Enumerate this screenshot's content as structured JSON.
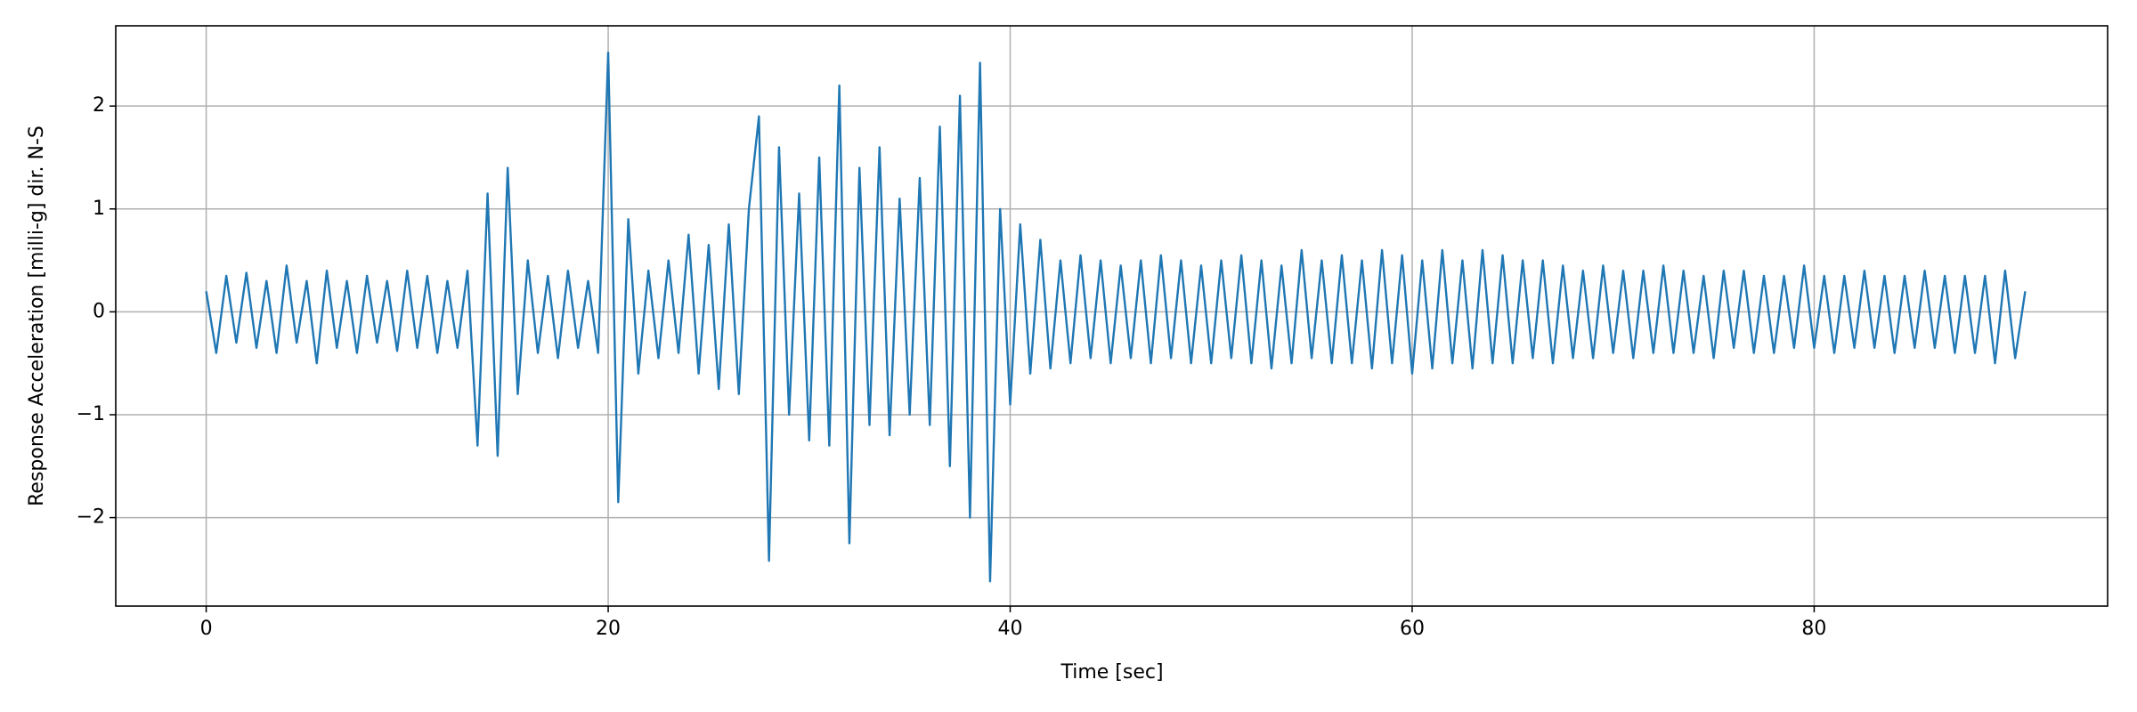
{
  "chart_data": {
    "type": "line",
    "xlabel": "Time [sec]",
    "ylabel": "Response Acceleration [milli-g] dir. N-S",
    "x": [
      0,
      0.5,
      1,
      1.5,
      2,
      2.5,
      3,
      3.5,
      4,
      4.5,
      5,
      5.5,
      6,
      6.5,
      7,
      7.5,
      8,
      8.5,
      9,
      9.5,
      10,
      10.5,
      11,
      11.5,
      12,
      12.5,
      13,
      13.5,
      14,
      14.5,
      15,
      15.5,
      16,
      16.5,
      17,
      17.5,
      18,
      18.5,
      19,
      19.5,
      20,
      20.5,
      21,
      21.5,
      22,
      22.5,
      23,
      23.5,
      24,
      24.5,
      25,
      25.5,
      26,
      26.5,
      27,
      27.5,
      28,
      28.5,
      29,
      29.5,
      30,
      30.5,
      31,
      31.5,
      32,
      32.5,
      33,
      33.5,
      34,
      34.5,
      35,
      35.5,
      36,
      36.5,
      37,
      37.5,
      38,
      38.5,
      39,
      39.5,
      40,
      40.5,
      41,
      41.5,
      42,
      42.5,
      43,
      43.5,
      44,
      44.5,
      45,
      45.5,
      46,
      46.5,
      47,
      47.5,
      48,
      48.5,
      49,
      49.5,
      50,
      50.5,
      51,
      51.5,
      52,
      52.5,
      53,
      53.5,
      54,
      54.5,
      55,
      55.5,
      56,
      56.5,
      57,
      57.5,
      58,
      58.5,
      59,
      59.5,
      60,
      60.5,
      61,
      61.5,
      62,
      62.5,
      63,
      63.5,
      64,
      64.5,
      65,
      65.5,
      66,
      66.5,
      67,
      67.5,
      68,
      68.5,
      69,
      69.5,
      70,
      70.5,
      71,
      71.5,
      72,
      72.5,
      73,
      73.5,
      74,
      74.5,
      75,
      75.5,
      76,
      76.5,
      77,
      77.5,
      78,
      78.5,
      79,
      79.5,
      80,
      80.5,
      81,
      81.5,
      82,
      82.5,
      83,
      83.5,
      84,
      84.5,
      85,
      85.5,
      86,
      86.5,
      87,
      87.5,
      88,
      88.5,
      89,
      89.5,
      90,
      90.5
    ],
    "series": [
      {
        "color": "#1f77b4",
        "values": [
          0.2,
          -0.4,
          0.35,
          -0.3,
          0.38,
          -0.35,
          0.3,
          -0.4,
          0.45,
          -0.3,
          0.3,
          -0.5,
          0.4,
          -0.35,
          0.3,
          -0.4,
          0.35,
          -0.3,
          0.3,
          -0.38,
          0.4,
          -0.35,
          0.35,
          -0.4,
          0.3,
          -0.35,
          0.4,
          -1.3,
          1.15,
          -1.4,
          1.4,
          -0.8,
          0.5,
          -0.4,
          0.35,
          -0.45,
          0.4,
          -0.35,
          0.3,
          -0.4,
          2.52,
          -1.85,
          0.9,
          -0.6,
          0.4,
          -0.45,
          0.5,
          -0.4,
          0.75,
          -0.6,
          0.65,
          -0.75,
          0.85,
          -0.8,
          1.0,
          1.9,
          -2.42,
          1.6,
          -1.0,
          1.15,
          -1.25,
          1.5,
          -1.3,
          2.2,
          -2.25,
          1.4,
          -1.1,
          1.6,
          -1.2,
          1.1,
          -1.0,
          1.3,
          -1.1,
          1.8,
          -1.5,
          2.1,
          -2.0,
          2.42,
          -2.62,
          1.0,
          -0.9,
          0.85,
          -0.6,
          0.7,
          -0.55,
          0.5,
          -0.5,
          0.55,
          -0.45,
          0.5,
          -0.5,
          0.45,
          -0.45,
          0.5,
          -0.5,
          0.55,
          -0.45,
          0.5,
          -0.5,
          0.45,
          -0.5,
          0.5,
          -0.45,
          0.55,
          -0.5,
          0.5,
          -0.55,
          0.45,
          -0.5,
          0.6,
          -0.45,
          0.5,
          -0.5,
          0.55,
          -0.5,
          0.5,
          -0.55,
          0.6,
          -0.5,
          0.55,
          -0.6,
          0.5,
          -0.55,
          0.6,
          -0.5,
          0.5,
          -0.55,
          0.6,
          -0.5,
          0.55,
          -0.5,
          0.5,
          -0.45,
          0.5,
          -0.5,
          0.45,
          -0.45,
          0.4,
          -0.45,
          0.45,
          -0.4,
          0.4,
          -0.45,
          0.4,
          -0.4,
          0.45,
          -0.4,
          0.4,
          -0.4,
          0.35,
          -0.45,
          0.4,
          -0.35,
          0.4,
          -0.4,
          0.35,
          -0.4,
          0.35,
          -0.35,
          0.45,
          -0.35,
          0.35,
          -0.4,
          0.35,
          -0.35,
          0.4,
          -0.35,
          0.35,
          -0.4,
          0.35,
          -0.35,
          0.4,
          -0.35,
          0.35,
          -0.4,
          0.35,
          -0.4,
          0.35,
          -0.5,
          0.4,
          -0.45,
          0.2
        ]
      }
    ],
    "xlim": [
      -4.5,
      94.6
    ],
    "ylim": [
      -2.86,
      2.78
    ],
    "xticks": [
      0,
      20,
      40,
      60,
      80
    ],
    "yticks": [
      {
        "value": -2,
        "label": "−2"
      },
      {
        "value": -1,
        "label": "−1"
      },
      0,
      1,
      2
    ],
    "grid": true
  }
}
